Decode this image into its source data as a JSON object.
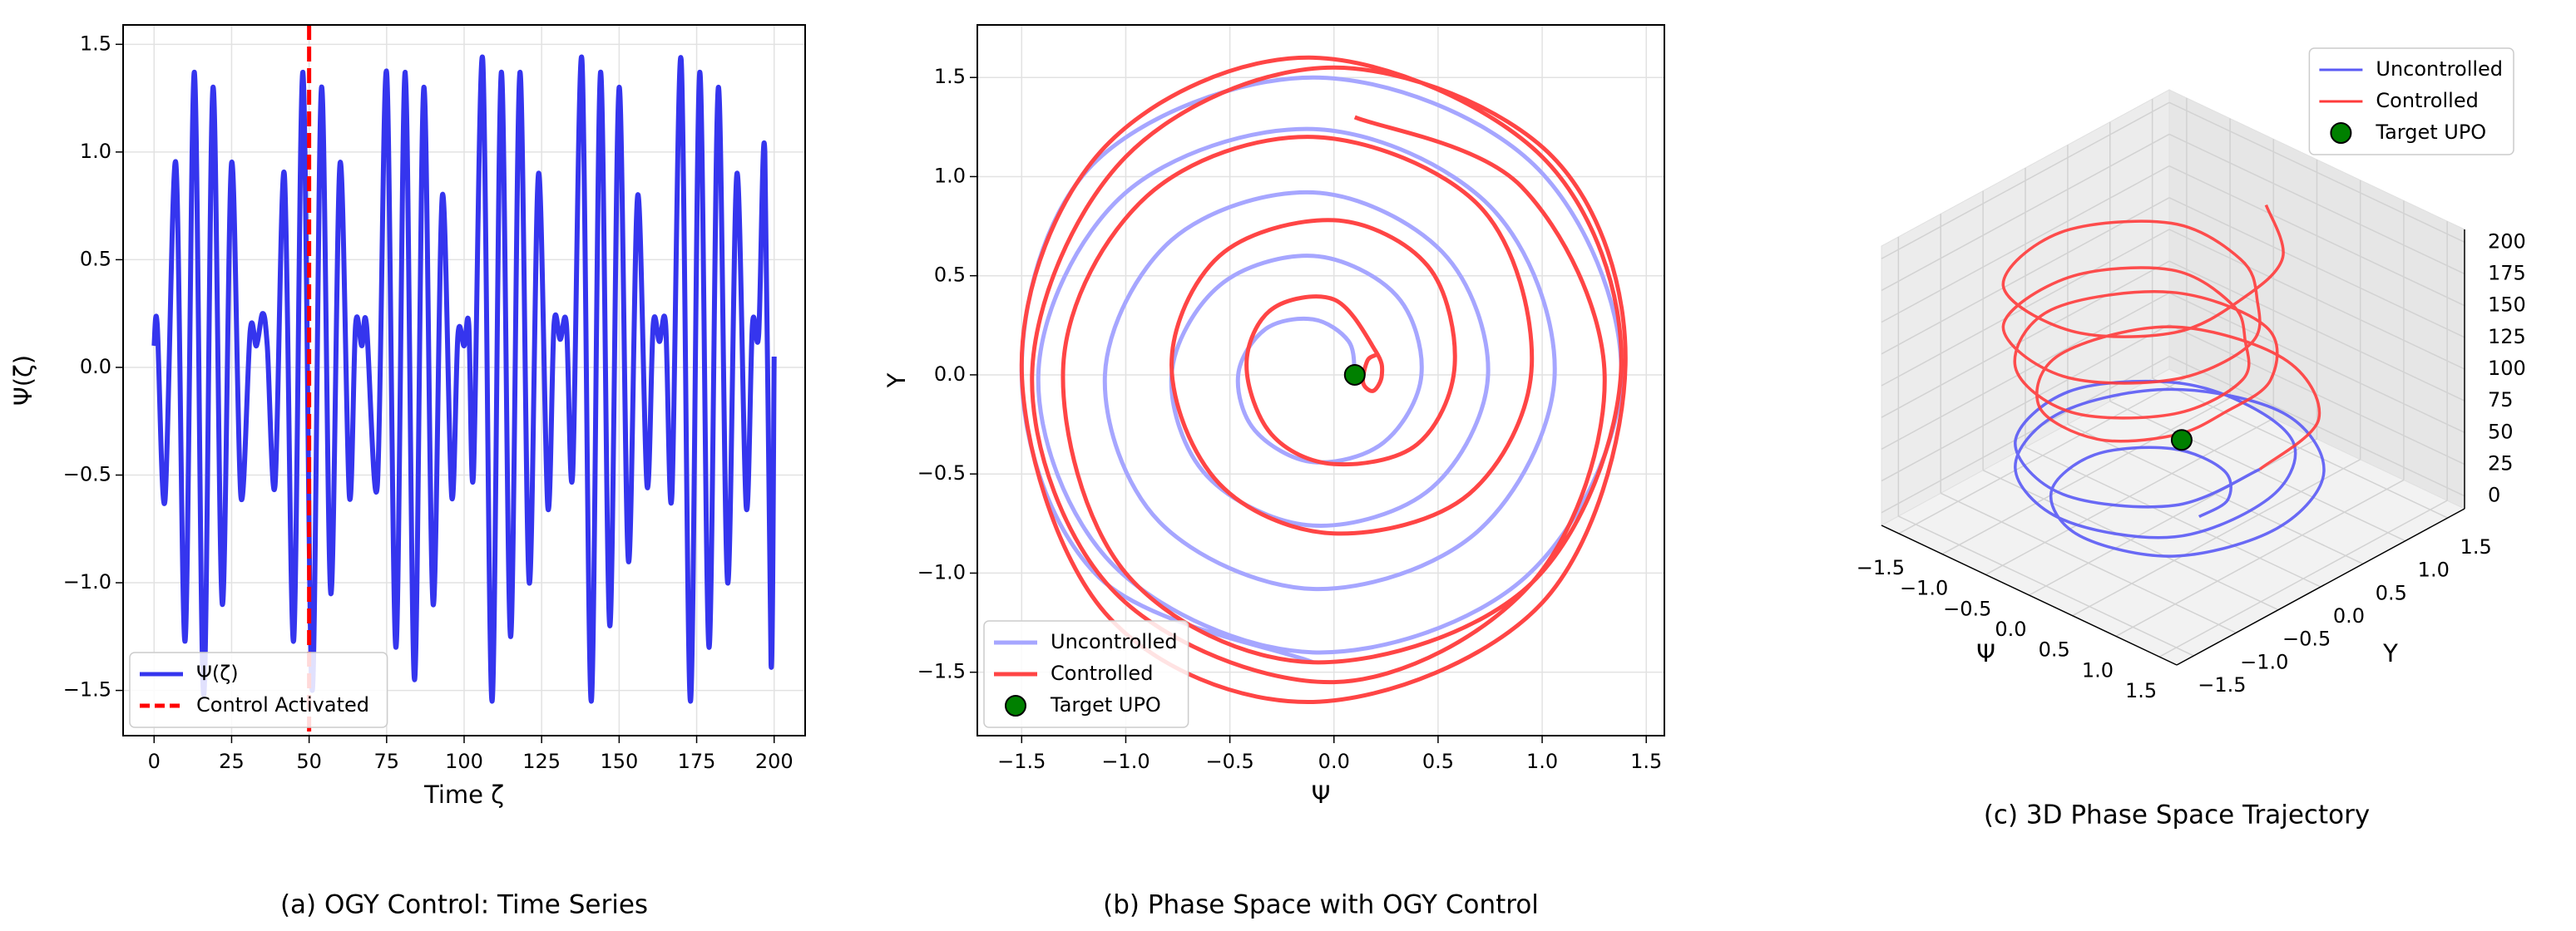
{
  "chart_data": [
    {
      "type": "line",
      "title": "(a) OGY Control: Time Series",
      "xlabel": "Time ζ",
      "ylabel": "Ψ(ζ)",
      "x": [
        0,
        1,
        3.5,
        7,
        10,
        13,
        16,
        19,
        22,
        25,
        28,
        31,
        33,
        35,
        36.5,
        39,
        42,
        45,
        48,
        51,
        54,
        57,
        60,
        63,
        65,
        67,
        68.5,
        72,
        75,
        78,
        81,
        84,
        87,
        90,
        93,
        96,
        98,
        100,
        101.5,
        103,
        106,
        109,
        112,
        115,
        118,
        121,
        124,
        127,
        129,
        131,
        133,
        135,
        138,
        141,
        144,
        147,
        150,
        153,
        156,
        159,
        161,
        163,
        165,
        167,
        170,
        173,
        176,
        179,
        182,
        185,
        188,
        191,
        193,
        195,
        197,
        199,
        200
      ],
      "series": [
        {
          "name": "Ψ(ζ)",
          "color": "#3535ee",
          "values": [
            0.1,
            0.2,
            -0.62,
            0.95,
            -1.27,
            1.37,
            -1.52,
            1.3,
            -1.1,
            0.95,
            -0.6,
            0.17,
            0.1,
            0.25,
            0.1,
            -0.55,
            0.9,
            -1.27,
            1.37,
            -1.5,
            1.3,
            -1.05,
            0.95,
            -0.6,
            0.2,
            0.1,
            0.2,
            -0.55,
            1.37,
            -1.3,
            1.37,
            -1.45,
            1.3,
            -1.1,
            0.8,
            -0.6,
            0.15,
            0.1,
            0.2,
            -0.5,
            1.43,
            -1.55,
            1.37,
            -1.25,
            1.37,
            -1.0,
            0.9,
            -0.65,
            0.2,
            0.13,
            0.2,
            -0.5,
            1.43,
            -1.55,
            1.37,
            -1.2,
            1.3,
            -0.9,
            0.8,
            -0.55,
            0.2,
            0.12,
            0.2,
            -0.6,
            1.43,
            -1.55,
            1.37,
            -1.3,
            1.3,
            -1.0,
            0.9,
            -0.65,
            0.2,
            0.15,
            1.0,
            -1.38,
            0.05
          ]
        }
      ],
      "reference_lines": [
        {
          "name": "Control Activated",
          "x": 50,
          "color": "#ff0000"
        }
      ],
      "xlim": [
        -10,
        210
      ],
      "ylim": [
        -1.71,
        1.59
      ],
      "xticks": [
        0,
        25,
        50,
        75,
        100,
        125,
        150,
        175,
        200
      ],
      "yticks": [
        {
          "value": -1.5,
          "label": "−1.5"
        },
        {
          "value": -1,
          "label": "−1.0"
        },
        {
          "value": -0.5,
          "label": "−0.5"
        },
        {
          "value": 0,
          "label": "0.0"
        },
        0.5,
        {
          "value": 1,
          "label": "1.0"
        },
        1.5
      ],
      "grid": true,
      "legend": "lower left"
    },
    {
      "type": "line",
      "title": "(b) Phase Space with OGY Control",
      "xlabel": "Ψ",
      "ylabel": "Y",
      "series": [
        {
          "name": "Uncontrolled",
          "color": "#a6a6ff",
          "x": [
            0.1,
            0.07,
            -0.1,
            -0.33,
            -0.46,
            -0.38,
            -0.1,
            0.24,
            0.42,
            0.3,
            -0.1,
            -0.55,
            -0.78,
            -0.61,
            -0.1,
            0.47,
            0.74,
            0.52,
            -0.1,
            -0.78,
            -1.1,
            -0.84,
            -0.1,
            0.69,
            1.06,
            0.75,
            -0.1,
            -1.01,
            -1.42,
            -1.06,
            -0.1,
            0.92,
            1.38,
            0.96,
            -0.1,
            -1.16,
            -1.5,
            -1.13,
            -0.1
          ],
          "values": [
            0,
            0.17,
            0.28,
            0.23,
            0,
            -0.28,
            -0.44,
            -0.34,
            0,
            0.4,
            0.6,
            0.45,
            0,
            -0.51,
            -0.76,
            -0.57,
            0,
            0.62,
            0.92,
            0.68,
            0,
            -0.74,
            -1.08,
            -0.79,
            0,
            0.85,
            1.24,
            0.91,
            0,
            -0.96,
            -1.4,
            -1.02,
            0,
            1.06,
            1.5,
            1.06,
            0,
            -1.02,
            -1.45
          ]
        },
        {
          "name": "Controlled",
          "color": "#ff4545",
          "x": [
            0.2,
            0.16,
            0.14,
            0.19,
            0.23,
            0.2,
            0.0,
            -0.3,
            -0.42,
            -0.3,
            0.0,
            0.4,
            0.58,
            0.45,
            0.0,
            -0.55,
            -0.78,
            -0.55,
            0.0,
            0.65,
            0.95,
            0.7,
            -0.1,
            -0.9,
            -1.3,
            -1.0,
            -0.1,
            0.95,
            1.38,
            1.0,
            -0.1,
            -1.1,
            -1.5,
            -1.1,
            -0.1,
            1.0,
            1.4,
            1.05,
            0.0,
            -1.0,
            -1.45,
            -1.05,
            0.0,
            0.95,
            1.3,
            0.9,
            0.1
          ],
          "values": [
            0.1,
            0.07,
            -0.04,
            -0.08,
            0.0,
            0.12,
            0.38,
            0.33,
            0.05,
            -0.3,
            -0.45,
            -0.35,
            0.05,
            0.55,
            0.78,
            0.6,
            0.05,
            -0.55,
            -0.8,
            -0.6,
            0.05,
            0.85,
            1.2,
            0.9,
            0.05,
            -1.0,
            -1.45,
            -1.05,
            0.05,
            1.1,
            1.6,
            1.15,
            0.05,
            -1.2,
            -1.65,
            -1.15,
            0.05,
            1.1,
            1.55,
            1.1,
            0.0,
            -1.1,
            -1.55,
            -1.05,
            0.0,
            0.95,
            1.3
          ]
        },
        {
          "name": "Target UPO",
          "color": "#008000",
          "style": "marker",
          "x": [
            0.1
          ],
          "values": [
            0
          ]
        }
      ],
      "xlim": [
        -1.713,
        1.587
      ],
      "ylim": [
        -1.82,
        1.765
      ],
      "xticks": [
        {
          "value": -1.5,
          "label": "−1.5"
        },
        {
          "value": -1,
          "label": "−1.0"
        },
        {
          "value": -0.5,
          "label": "−0.5"
        },
        {
          "value": 0,
          "label": "0.0"
        },
        0.5,
        {
          "value": 1,
          "label": "1.0"
        },
        1.5
      ],
      "yticks": [
        {
          "value": -1.5,
          "label": "−1.5"
        },
        {
          "value": -1,
          "label": "−1.0"
        },
        {
          "value": -0.5,
          "label": "−0.5"
        },
        {
          "value": 0,
          "label": "0.0"
        },
        0.5,
        {
          "value": 1,
          "label": "1.0"
        },
        1.5
      ],
      "grid": true,
      "legend": "lower left"
    },
    {
      "type": "line3d",
      "title": "(c) 3D Phase Space Trajectory",
      "xlabel": "Ψ",
      "ylabel": "Y",
      "series": [
        {
          "name": "Uncontrolled",
          "color": "#5a5af5",
          "x": [
            0.3,
            0.32,
            0,
            -0.53,
            -0.9,
            -0.71,
            0,
            0.85,
            1.2,
            0.88,
            0,
            -0.92,
            -1.3,
            -0.92,
            0,
            0.92,
            1.1,
            0.71,
            0,
            -0.71,
            -1.2,
            -0.92,
            0,
            0.85,
            1.0
          ],
          "y": [
            0,
            0.32,
            0.6,
            0.53,
            0,
            -0.71,
            -1.1,
            -0.85,
            0,
            0.88,
            1.3,
            0.92,
            0,
            -0.92,
            -1.3,
            -0.92,
            0,
            0.71,
            0.9,
            0.71,
            0,
            -0.92,
            -1.3,
            -0.85,
            0
          ],
          "z": [
            0,
            2.5,
            5,
            7.5,
            10,
            12.5,
            15,
            17.5,
            20,
            22.5,
            25,
            27.5,
            30,
            32.5,
            35,
            37.5,
            40,
            42.5,
            45,
            47.5,
            50,
            52.5,
            55,
            57.5,
            60
          ]
        },
        {
          "name": "Controlled",
          "color": "#ff3b3b",
          "x": [
            1.0,
            0.85,
            0,
            -0.99,
            -1.3,
            -0.78,
            0,
            0.49,
            0.6,
            0.57,
            0,
            -0.92,
            -1.4,
            -0.92,
            0,
            0.71,
            0.8,
            0.42,
            0,
            -0.71,
            -1.2,
            -0.99,
            0,
            0.78,
            0.9,
            0.49,
            0,
            -0.78,
            -1.3,
            -0.99,
            0,
            0.71,
            0.8,
            0.64,
            0
          ],
          "y": [
            0,
            0.85,
            1.3,
            0.99,
            0,
            -0.78,
            -0.9,
            -0.49,
            0,
            0.57,
            1.1,
            0.92,
            0,
            -0.92,
            -1.2,
            -0.71,
            0,
            0.42,
            0.7,
            0.71,
            0,
            -0.99,
            -1.3,
            -0.78,
            0,
            0.49,
            0.8,
            0.78,
            0,
            -0.99,
            -1.2,
            -0.71,
            0,
            0.64,
            1.1
          ],
          "z": [
            60,
            64,
            68,
            72,
            76,
            80,
            84,
            88,
            92,
            96,
            100,
            104,
            108,
            112,
            116,
            120,
            124,
            128,
            132,
            136,
            140,
            144,
            148,
            152,
            156,
            160,
            164,
            168,
            172,
            176,
            180,
            184,
            188,
            192,
            196
          ]
        },
        {
          "name": "Target UPO",
          "color": "#008000",
          "style": "marker",
          "x": [
            0.1
          ],
          "y": [
            0
          ],
          "z": [
            54
          ]
        }
      ],
      "xlim": [
        -1.7,
        1.7
      ],
      "ylim": [
        -1.7,
        1.7
      ],
      "zlim": [
        -10,
        210
      ],
      "xticks": [
        {
          "value": -1.5,
          "label": "−1.5"
        },
        {
          "value": -1,
          "label": "−1.0"
        },
        {
          "value": -0.5,
          "label": "−0.5"
        },
        {
          "value": 0,
          "label": "0.0"
        },
        0.5,
        {
          "value": 1,
          "label": "1.0"
        },
        1.5
      ],
      "yticks": [
        {
          "value": -1.5,
          "label": "−1.5"
        },
        {
          "value": -1,
          "label": "−1.0"
        },
        {
          "value": -0.5,
          "label": "−0.5"
        },
        {
          "value": 0,
          "label": "0.0"
        },
        0.5,
        {
          "value": 1,
          "label": "1.0"
        },
        1.5
      ],
      "zticks": [
        0,
        25,
        50,
        75,
        100,
        125,
        150,
        175,
        200
      ],
      "grid": true,
      "legend": "upper right"
    }
  ]
}
